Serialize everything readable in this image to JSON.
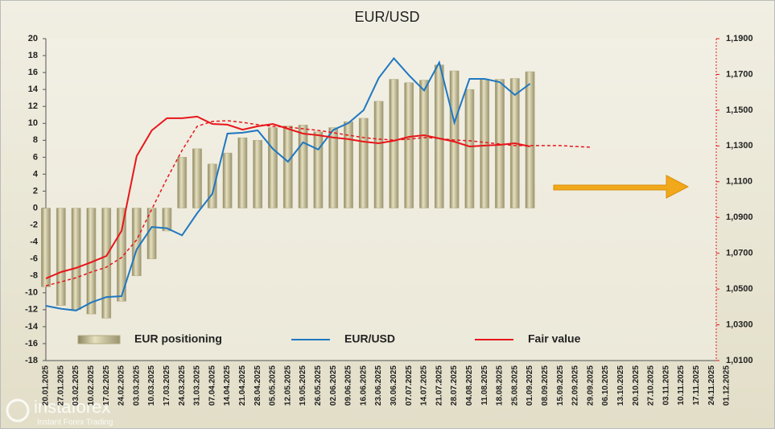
{
  "chart_data": {
    "type": "bar",
    "title": "EUR/USD",
    "categories": [
      "20.01.2025",
      "27.01.2025",
      "03.02.2025",
      "10.02.2025",
      "17.02.2025",
      "24.02.2025",
      "03.03.2025",
      "10.03.2025",
      "17.03.2025",
      "24.03.2025",
      "31.03.2025",
      "07.04.2025",
      "14.04.2025",
      "21.04.2025",
      "28.04.2025",
      "05.05.2025",
      "12.05.2025",
      "19.05.2025",
      "26.05.2025",
      "02.06.2025",
      "09.06.2025",
      "16.06.2025",
      "23.06.2025",
      "30.06.2025",
      "07.07.2025",
      "14.07.2025",
      "21.07.2025",
      "28.07.2025",
      "04.08.2025",
      "11.08.2025",
      "18.08.2025",
      "25.08.2025",
      "01.09.2025",
      "08.09.2025",
      "15.09.2025",
      "22.09.2025",
      "29.09.2025",
      "06.10.2025",
      "13.10.2025",
      "20.10.2025",
      "27.10.2025",
      "03.11.2025",
      "10.11.2025",
      "17.11.2025",
      "24.11.2025",
      "01.12.2025"
    ],
    "series": [
      {
        "name": "EUR positioning",
        "type": "bar",
        "color": "#b3ab80",
        "values": [
          -9.3,
          -11.5,
          -12,
          -12.5,
          -13,
          -11,
          -8,
          -6,
          -2.7,
          6,
          7,
          5.2,
          6.5,
          8.3,
          8,
          9.5,
          9.7,
          9.8,
          9,
          9.5,
          10.2,
          10.6,
          12.6,
          15.2,
          14.8,
          15.1,
          16.9,
          16.2,
          14,
          15.2,
          15.2,
          15.3,
          16.1,
          null,
          null,
          null,
          null,
          null,
          null,
          null,
          null,
          null,
          null,
          null,
          null,
          null
        ]
      },
      {
        "name": "EUR/USD",
        "type": "line",
        "axis": "y2",
        "color": "#1f78c1",
        "values": [
          1.0406,
          1.039,
          1.038,
          1.0425,
          1.0455,
          1.046,
          1.0721,
          1.0847,
          1.084,
          1.08,
          1.0924,
          1.1032,
          1.1369,
          1.1374,
          1.1387,
          1.1284,
          1.1212,
          1.132,
          1.128,
          1.139,
          1.1428,
          1.15,
          1.168,
          1.179,
          1.1695,
          1.161,
          1.1767,
          1.143,
          1.1675,
          1.1675,
          1.1657,
          1.1585,
          1.1648,
          null,
          null,
          null,
          null,
          null,
          null,
          null,
          null,
          null,
          null,
          null,
          null,
          null
        ]
      },
      {
        "name": "Fair value",
        "type": "line",
        "axis": "y2",
        "color": "#e8161b",
        "values": [
          1.0559,
          1.0595,
          1.0618,
          1.065,
          1.0685,
          1.0825,
          1.1243,
          1.1387,
          1.1455,
          1.1455,
          1.1464,
          1.1423,
          1.1419,
          1.1391,
          1.141,
          1.1423,
          1.1396,
          1.1369,
          1.136,
          1.1347,
          1.1338,
          1.1324,
          1.1315,
          1.1329,
          1.1351,
          1.136,
          1.1342,
          1.1324,
          1.1297,
          1.1302,
          1.1306,
          1.1315,
          1.1297,
          null,
          null,
          null,
          null,
          null,
          null,
          null,
          null,
          null,
          null,
          null,
          null,
          null
        ]
      },
      {
        "type": "line",
        "axis": "y2",
        "dash": true,
        "color": "#e8161b",
        "values": [
          1.0518,
          1.054,
          1.0563,
          1.0595,
          1.0622,
          1.0676,
          1.0775,
          1.0946,
          1.1117,
          1.1275,
          1.141,
          1.1437,
          1.1441,
          1.1432,
          1.1419,
          1.141,
          1.1405,
          1.1396,
          1.1387,
          1.1374,
          1.136,
          1.1347,
          1.1338,
          1.1333,
          1.1338,
          1.1347,
          1.1342,
          1.1333,
          1.1329,
          1.132,
          1.1311,
          1.1302,
          1.1302,
          1.1302,
          1.1302,
          1.1297,
          1.1293,
          null,
          null,
          null,
          null,
          null,
          null,
          null,
          null,
          null
        ]
      }
    ],
    "ylim": [
      -18,
      20
    ],
    "yticks": [
      -18,
      -16,
      -14,
      -12,
      -10,
      -8,
      -6,
      -4,
      -2,
      0,
      2,
      4,
      6,
      8,
      10,
      12,
      14,
      16,
      18,
      20
    ],
    "y2lim": [
      1.01,
      1.19
    ],
    "y2ticks": [
      {
        "value": 1.01,
        "label": "1,0100"
      },
      {
        "value": 1.03,
        "label": "1,0300"
      },
      {
        "value": 1.05,
        "label": "1,0500"
      },
      {
        "value": 1.07,
        "label": "1,0700"
      },
      {
        "value": 1.09,
        "label": "1,0900"
      },
      {
        "value": 1.11,
        "label": "1,1100"
      },
      {
        "value": 1.13,
        "label": "1,1300"
      },
      {
        "value": 1.15,
        "label": "1,1500"
      },
      {
        "value": 1.17,
        "label": "1,1700"
      },
      {
        "value": 1.19,
        "label": "1,1900"
      }
    ],
    "legend": "bottom"
  },
  "logo": {
    "name": "instaforex",
    "tagline": "Instant Forex Trading"
  }
}
